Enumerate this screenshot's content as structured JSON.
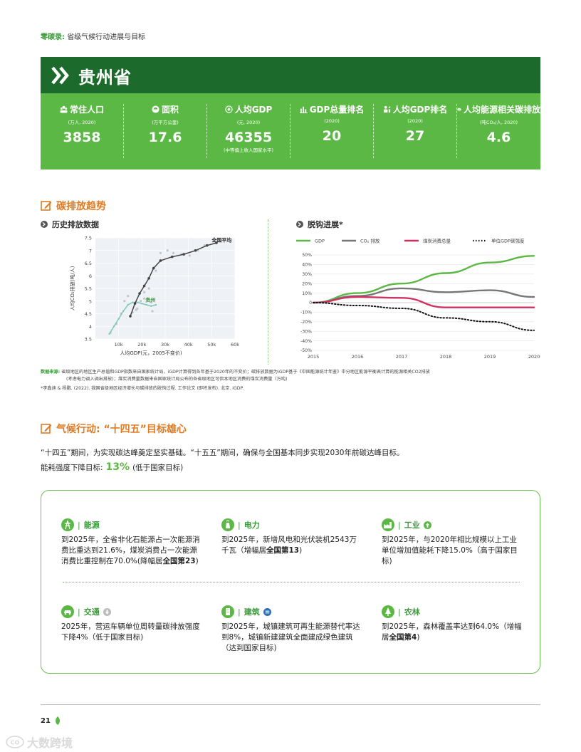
{
  "header_label": {
    "prefix": "零碳录",
    "sep": ":",
    "text": "省级气候行动进展与目标"
  },
  "province": "贵州省",
  "colors": {
    "dark_green": "#1c6b2c",
    "green": "#5cb845",
    "orange": "#e07b24",
    "magenta": "#d0315f",
    "gray": "#777777"
  },
  "stats": [
    {
      "icon": "population-icon",
      "label": "常住人口",
      "unit": "(万人, 2020)",
      "value": "3858",
      "note": ""
    },
    {
      "icon": "area-icon",
      "label": "面积",
      "unit": "(万平方公里)",
      "value": "17.6",
      "note": ""
    },
    {
      "icon": "gdp-per-capita-icon",
      "label": "人均GDP",
      "unit": "(元, 2020)",
      "value": "46355",
      "note": "(中等偏上收入国家水平)"
    },
    {
      "icon": "bar-chart-icon",
      "label": "GDP总量排名",
      "unit": "(2020)",
      "value": "20",
      "note": ""
    },
    {
      "icon": "people-rank-icon",
      "label": "人均GDP排名",
      "unit": "(2020)",
      "value": "27",
      "note": ""
    },
    {
      "icon": "co2-cloud-icon",
      "label": "人均能源相关碳排放",
      "unit": "(吨CO₂/人, 2020)",
      "value": "4.6",
      "note": ""
    }
  ],
  "section1_title": "碳排放趋势",
  "sub1_title": "历史排放数据",
  "sub2_title": "脱钩进展*",
  "chart_data": [
    {
      "type": "scatter",
      "xlabel": "人均GDP(元，2005不变价)",
      "ylabel": "人均CO₂排放(吨/人)",
      "xlim": [
        0,
        60000
      ],
      "ylim": [
        3.5,
        7.5
      ],
      "xticks": [
        "10k",
        "20k",
        "30k",
        "40k",
        "50k",
        "60k"
      ],
      "yticks": [
        "3.5",
        "4",
        "4.5",
        "5",
        "5.5",
        "6",
        "6.5",
        "7",
        "7.5"
      ],
      "annotations": [
        "全国平均",
        "贵州"
      ],
      "series": [
        {
          "name": "全国平均",
          "x": [
            15000,
            17000,
            19000,
            21000,
            23000,
            25000,
            28000,
            33000,
            38000,
            43000,
            48000,
            52000
          ],
          "y": [
            4.4,
            4.9,
            5.3,
            5.6,
            5.9,
            6.3,
            6.6,
            6.75,
            6.85,
            7.0,
            7.2,
            7.3
          ]
        },
        {
          "name": "贵州",
          "x": [
            6000,
            8000,
            10000,
            12000,
            14000,
            16000,
            18000,
            20000,
            22000,
            24000,
            26000
          ],
          "y": [
            3.7,
            4.0,
            4.3,
            4.6,
            4.85,
            4.95,
            4.95,
            4.9,
            4.85,
            4.8,
            4.85
          ]
        }
      ],
      "scatter_points": [
        {
          "x": 6500,
          "y": 3.75
        },
        {
          "x": 9000,
          "y": 4.1
        },
        {
          "x": 11000,
          "y": 4.5
        },
        {
          "x": 12500,
          "y": 5.0
        },
        {
          "x": 14000,
          "y": 5.2
        },
        {
          "x": 16000,
          "y": 4.55
        },
        {
          "x": 18000,
          "y": 4.7
        },
        {
          "x": 19500,
          "y": 5.0
        },
        {
          "x": 21000,
          "y": 5.35
        },
        {
          "x": 23000,
          "y": 5.5
        },
        {
          "x": 24500,
          "y": 4.6
        },
        {
          "x": 24000,
          "y": 4.95
        },
        {
          "x": 26000,
          "y": 6.2
        },
        {
          "x": 28000,
          "y": 6.9
        },
        {
          "x": 31000,
          "y": 7.0
        },
        {
          "x": 33500,
          "y": 6.9
        },
        {
          "x": 37000,
          "y": 6.85
        },
        {
          "x": 40500,
          "y": 6.8
        },
        {
          "x": 44000,
          "y": 7.0
        },
        {
          "x": 47000,
          "y": 7.2
        },
        {
          "x": 21000,
          "y": 5.1
        },
        {
          "x": 17500,
          "y": 4.65
        }
      ]
    },
    {
      "type": "line",
      "legend": [
        "GDP",
        "CO₂ 排放",
        "煤炭消费总量",
        "单位GDP碳强度"
      ],
      "x": [
        2015,
        2016,
        2017,
        2018,
        2019,
        2020
      ],
      "ylim": [
        -50,
        50
      ],
      "yticks": [
        "50%",
        "40%",
        "30%",
        "20%",
        "10%",
        "0",
        "-10%",
        "-20%",
        "-30%",
        "-40%",
        "-50%"
      ],
      "xticks": [
        "2015",
        "2016",
        "2017",
        "2018",
        "2019",
        "2020"
      ],
      "series": [
        {
          "name": "GDP",
          "color": "#5cb845",
          "style": "solid",
          "values": [
            0,
            10,
            20,
            31,
            42,
            49
          ]
        },
        {
          "name": "CO₂ 排放",
          "color": "#777777",
          "style": "solid",
          "values": [
            0,
            7,
            15,
            11,
            13,
            6
          ]
        },
        {
          "name": "煤炭消费总量",
          "color": "#d0315f",
          "style": "solid",
          "values": [
            0,
            6,
            5,
            -5,
            -5,
            -5
          ]
        },
        {
          "name": "单位GDP碳强度",
          "color": "#111111",
          "style": "dotted",
          "values": [
            0,
            -3,
            -6,
            -16,
            -20,
            -29
          ]
        }
      ]
    }
  ],
  "source": {
    "label": "数据来源:",
    "line1": "省级地区的地区生产总值和GDP指数来自国家统计局，iGDP计算得到各年基于2020年的不变价；碳排放数据为iGDP基于《中国能源统计年鉴》中分地区能源平衡表计算的能源相关CO2排放",
    "line2": "(考虑电力调入调出排放)；煤炭消费量数据来自国家统计局公布的各省级地区可供本地区消费的煤炭消费量（万吨)",
    "line3": "*李鑫迪 & 杨鹏. (2022). 我国省级地区经济增长与碳排放的脱钩过程. 工作论文 (即将发布). 北京. iGDP."
  },
  "section2_title": "气候行动: “十四五”目标雄心",
  "intro_line1": "“十四五”期间，为实现碳达峰奠定坚实基础。“十五五”期间，确保与全国基本同步实现2030年前碳达峰目标。",
  "intro_label": "能耗强度下降目标:",
  "intro_value": "13%",
  "intro_note": "(低于国家目标)",
  "sectors": [
    {
      "name": "能源",
      "icon": "power-pylon-icon",
      "badge": "",
      "text": "到2025年，全省非化石能源占一次能源消费比重达到21.6%，煤炭消费占一次能源消费比重控制在70.0%(降幅居",
      "bold": "全国第23",
      "tail": ")"
    },
    {
      "name": "电力",
      "icon": "power-plant-icon",
      "badge": "",
      "text": "到2025年，新增风电和光伏装机2543万千瓦（增幅居",
      "bold": "全国第13",
      "tail": ")"
    },
    {
      "name": "工业",
      "icon": "factory-icon",
      "badge": "up-arrow-icon",
      "text": "到2025年，与2020年相比规模以上工业单位增加值能耗下降15.0%（高于国家目标)",
      "bold": "",
      "tail": ""
    },
    {
      "name": "交通",
      "icon": "car-icon",
      "badge": "down-arrow-icon",
      "text": "2025年，营运车辆单位周转量碳排放强度下降4%（低于国家目标)",
      "bold": "",
      "tail": ""
    },
    {
      "name": "建筑",
      "icon": "building-icon",
      "badge": "equal-icon",
      "text": "到2025年，城镇建筑可再生能源替代率达到8%，城镇新建建筑全面建成绿色建筑（达到国家目标)",
      "bold": "",
      "tail": ""
    },
    {
      "name": "农林",
      "icon": "tree-icon",
      "badge": "",
      "text": "到2025年，森林覆盖率达到64.0%（增幅居",
      "bold": "全国第4",
      "tail": ")"
    }
  ],
  "page_number": "21",
  "watermark": "大数跨境"
}
